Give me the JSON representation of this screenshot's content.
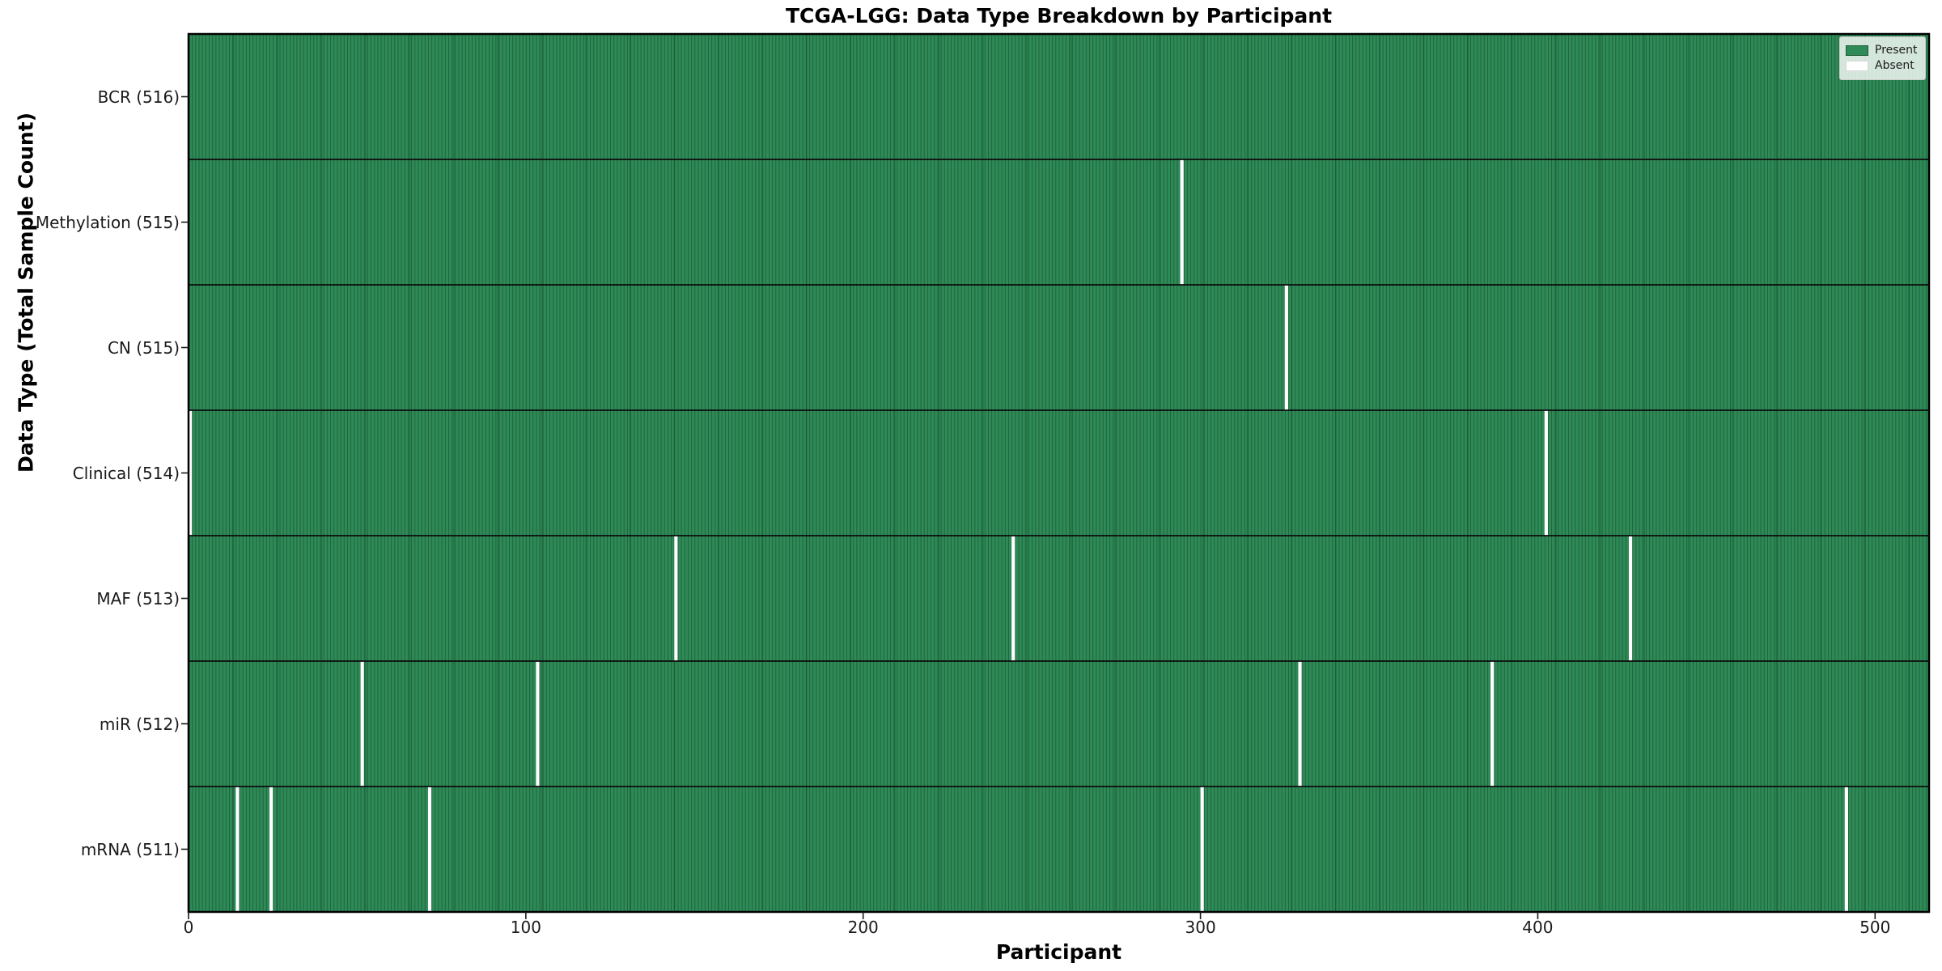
{
  "figure": {
    "kind": "matplotlib-style presence chart"
  },
  "chart_data": {
    "type": "heatmap",
    "title": "TCGA-LGG: Data Type Breakdown by Participant",
    "xlabel": "Participant",
    "ylabel": "Data Type (Total Sample Count)",
    "x_ticks": [
      0,
      100,
      200,
      300,
      400,
      500
    ],
    "x_max": 516,
    "n_participants": 516,
    "grid": false,
    "legend_position": "upper right",
    "legend": [
      {
        "label": "Present",
        "color": "#2e8b57"
      },
      {
        "label": "Absent",
        "color": "#ffffff"
      }
    ],
    "colors": {
      "present": "#2e8b57",
      "cell_edge": "#1d5c39",
      "absent": "#ffffff",
      "row_separator": "#0d0d0d",
      "plot_border": "#000000",
      "tick": "#1a1a1a",
      "legend_swatch_present_border": "#1d5c39",
      "legend_swatch_absent_border": "#d9d9d9"
    },
    "rows": [
      {
        "label": "BCR (516)",
        "data_type": "BCR",
        "count": 516,
        "absent_participants": []
      },
      {
        "label": "Methylation (515)",
        "data_type": "Methylation",
        "count": 515,
        "absent_participants": [
          294
        ]
      },
      {
        "label": "CN (515)",
        "data_type": "CN",
        "count": 515,
        "absent_participants": [
          325
        ]
      },
      {
        "label": "Clinical (514)",
        "data_type": "Clinical",
        "count": 514,
        "absent_participants": [
          0,
          402
        ]
      },
      {
        "label": "MAF (513)",
        "data_type": "MAF",
        "count": 513,
        "absent_participants": [
          144,
          244,
          427
        ]
      },
      {
        "label": "miR (512)",
        "data_type": "miR",
        "count": 512,
        "absent_participants": [
          51,
          103,
          329,
          386
        ]
      },
      {
        "label": "mRNA (511)",
        "data_type": "mRNA",
        "count": 511,
        "absent_participants": [
          14,
          24,
          71,
          300,
          491
        ]
      }
    ]
  }
}
